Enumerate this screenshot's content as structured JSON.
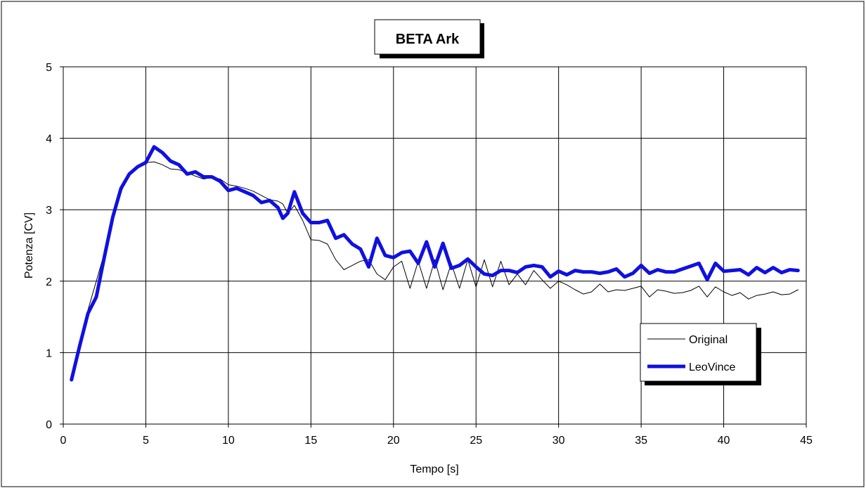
{
  "chart_data": {
    "type": "line",
    "title": "BETA Ark",
    "xlabel": "Tempo [s]",
    "ylabel": "Potenza [CV]",
    "xlim": [
      0,
      45
    ],
    "ylim": [
      0,
      5
    ],
    "x_ticks": [
      "0",
      "5",
      "10",
      "15",
      "20",
      "25",
      "30",
      "35",
      "40",
      "45"
    ],
    "y_ticks": [
      "0",
      "1",
      "2",
      "3",
      "4",
      "5"
    ],
    "grid": true,
    "legend_position": "bottom-right",
    "series": [
      {
        "name": "Original",
        "color": "#000000",
        "line_style": "thin",
        "points": [
          [
            0.5,
            0.62
          ],
          [
            1.0,
            1.15
          ],
          [
            1.5,
            1.6
          ],
          [
            2.0,
            2.0
          ],
          [
            2.5,
            2.4
          ],
          [
            3.0,
            2.85
          ],
          [
            3.5,
            3.25
          ],
          [
            4.0,
            3.5
          ],
          [
            4.5,
            3.62
          ],
          [
            5.0,
            3.66
          ],
          [
            5.5,
            3.67
          ],
          [
            6.0,
            3.63
          ],
          [
            6.5,
            3.57
          ],
          [
            7.0,
            3.56
          ],
          [
            7.5,
            3.52
          ],
          [
            8.0,
            3.47
          ],
          [
            8.5,
            3.43
          ],
          [
            9.0,
            3.45
          ],
          [
            9.5,
            3.43
          ],
          [
            10.0,
            3.35
          ],
          [
            10.5,
            3.33
          ],
          [
            11.0,
            3.3
          ],
          [
            11.5,
            3.26
          ],
          [
            12.0,
            3.2
          ],
          [
            12.5,
            3.14
          ],
          [
            13.0,
            3.12
          ],
          [
            13.3,
            3.08
          ],
          [
            13.6,
            2.95
          ],
          [
            14.0,
            3.06
          ],
          [
            14.5,
            2.85
          ],
          [
            15.0,
            2.58
          ],
          [
            15.5,
            2.57
          ],
          [
            16.0,
            2.52
          ],
          [
            16.5,
            2.3
          ],
          [
            17.0,
            2.16
          ],
          [
            17.5,
            2.22
          ],
          [
            18.0,
            2.28
          ],
          [
            18.5,
            2.3
          ],
          [
            19.0,
            2.1
          ],
          [
            19.5,
            2.02
          ],
          [
            20.0,
            2.2
          ],
          [
            20.5,
            2.28
          ],
          [
            21.0,
            1.9
          ],
          [
            21.5,
            2.28
          ],
          [
            22.0,
            1.9
          ],
          [
            22.5,
            2.3
          ],
          [
            23.0,
            1.88
          ],
          [
            23.5,
            2.25
          ],
          [
            24.0,
            1.9
          ],
          [
            24.5,
            2.3
          ],
          [
            25.0,
            1.92
          ],
          [
            25.5,
            2.3
          ],
          [
            26.0,
            1.92
          ],
          [
            26.5,
            2.28
          ],
          [
            27.0,
            1.95
          ],
          [
            27.5,
            2.1
          ],
          [
            28.0,
            1.95
          ],
          [
            28.5,
            2.15
          ],
          [
            29.0,
            2.02
          ],
          [
            29.5,
            1.9
          ],
          [
            30.0,
            2.0
          ],
          [
            30.5,
            1.95
          ],
          [
            31.0,
            1.88
          ],
          [
            31.5,
            1.82
          ],
          [
            32.0,
            1.85
          ],
          [
            32.5,
            1.96
          ],
          [
            33.0,
            1.85
          ],
          [
            33.5,
            1.88
          ],
          [
            34.0,
            1.87
          ],
          [
            34.5,
            1.9
          ],
          [
            35.0,
            1.93
          ],
          [
            35.5,
            1.78
          ],
          [
            36.0,
            1.88
          ],
          [
            36.5,
            1.86
          ],
          [
            37.0,
            1.83
          ],
          [
            37.5,
            1.84
          ],
          [
            38.0,
            1.87
          ],
          [
            38.5,
            1.93
          ],
          [
            39.0,
            1.78
          ],
          [
            39.5,
            1.92
          ],
          [
            40.0,
            1.85
          ],
          [
            40.5,
            1.8
          ],
          [
            41.0,
            1.84
          ],
          [
            41.5,
            1.75
          ],
          [
            42.0,
            1.8
          ],
          [
            42.5,
            1.82
          ],
          [
            43.0,
            1.85
          ],
          [
            43.5,
            1.81
          ],
          [
            44.0,
            1.82
          ],
          [
            44.5,
            1.88
          ]
        ]
      },
      {
        "name": "LeoVince",
        "color": "#1010e0",
        "line_style": "thick",
        "points": [
          [
            0.5,
            0.62
          ],
          [
            1.0,
            1.1
          ],
          [
            1.5,
            1.55
          ],
          [
            2.0,
            1.78
          ],
          [
            2.5,
            2.35
          ],
          [
            3.0,
            2.9
          ],
          [
            3.5,
            3.3
          ],
          [
            4.0,
            3.5
          ],
          [
            4.5,
            3.6
          ],
          [
            5.0,
            3.66
          ],
          [
            5.5,
            3.88
          ],
          [
            6.0,
            3.8
          ],
          [
            6.5,
            3.68
          ],
          [
            7.0,
            3.63
          ],
          [
            7.5,
            3.5
          ],
          [
            8.0,
            3.53
          ],
          [
            8.5,
            3.46
          ],
          [
            9.0,
            3.46
          ],
          [
            9.5,
            3.4
          ],
          [
            10.0,
            3.27
          ],
          [
            10.5,
            3.3
          ],
          [
            11.0,
            3.25
          ],
          [
            11.5,
            3.2
          ],
          [
            12.0,
            3.1
          ],
          [
            12.5,
            3.13
          ],
          [
            13.0,
            3.03
          ],
          [
            13.3,
            2.88
          ],
          [
            13.6,
            2.95
          ],
          [
            14.0,
            3.25
          ],
          [
            14.5,
            2.95
          ],
          [
            15.0,
            2.82
          ],
          [
            15.5,
            2.82
          ],
          [
            16.0,
            2.85
          ],
          [
            16.5,
            2.6
          ],
          [
            17.0,
            2.65
          ],
          [
            17.5,
            2.52
          ],
          [
            18.0,
            2.45
          ],
          [
            18.5,
            2.2
          ],
          [
            19.0,
            2.6
          ],
          [
            19.5,
            2.36
          ],
          [
            20.0,
            2.33
          ],
          [
            20.5,
            2.4
          ],
          [
            21.0,
            2.42
          ],
          [
            21.5,
            2.25
          ],
          [
            22.0,
            2.55
          ],
          [
            22.5,
            2.2
          ],
          [
            23.0,
            2.53
          ],
          [
            23.5,
            2.18
          ],
          [
            24.0,
            2.22
          ],
          [
            24.5,
            2.31
          ],
          [
            25.0,
            2.2
          ],
          [
            25.5,
            2.1
          ],
          [
            26.0,
            2.08
          ],
          [
            26.5,
            2.15
          ],
          [
            27.0,
            2.15
          ],
          [
            27.5,
            2.12
          ],
          [
            28.0,
            2.2
          ],
          [
            28.5,
            2.22
          ],
          [
            29.0,
            2.2
          ],
          [
            29.5,
            2.06
          ],
          [
            30.0,
            2.14
          ],
          [
            30.5,
            2.09
          ],
          [
            31.0,
            2.15
          ],
          [
            31.5,
            2.13
          ],
          [
            32.0,
            2.13
          ],
          [
            32.5,
            2.11
          ],
          [
            33.0,
            2.13
          ],
          [
            33.5,
            2.17
          ],
          [
            34.0,
            2.06
          ],
          [
            34.5,
            2.11
          ],
          [
            35.0,
            2.22
          ],
          [
            35.5,
            2.11
          ],
          [
            36.0,
            2.16
          ],
          [
            36.5,
            2.13
          ],
          [
            37.0,
            2.13
          ],
          [
            37.5,
            2.17
          ],
          [
            38.0,
            2.21
          ],
          [
            38.5,
            2.25
          ],
          [
            39.0,
            2.02
          ],
          [
            39.5,
            2.25
          ],
          [
            40.0,
            2.14
          ],
          [
            40.5,
            2.15
          ],
          [
            41.0,
            2.16
          ],
          [
            41.5,
            2.09
          ],
          [
            42.0,
            2.19
          ],
          [
            42.5,
            2.12
          ],
          [
            43.0,
            2.19
          ],
          [
            43.5,
            2.12
          ],
          [
            44.0,
            2.16
          ],
          [
            44.5,
            2.15
          ]
        ]
      }
    ]
  }
}
